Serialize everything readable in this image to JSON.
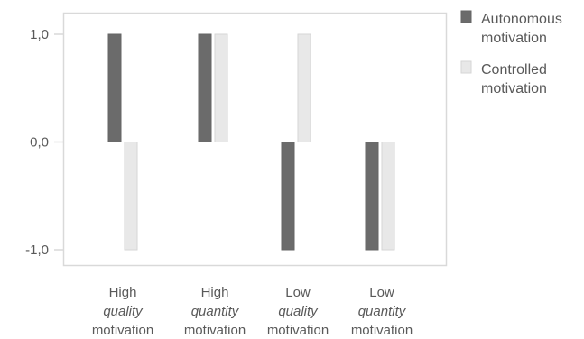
{
  "chart_data": {
    "type": "bar",
    "categories": [
      [
        "High",
        "quality",
        "motivation"
      ],
      [
        "High",
        "quantity",
        "motivation"
      ],
      [
        "Low",
        "quality",
        "motivation"
      ],
      [
        "Low",
        "quantity",
        "motivation"
      ]
    ],
    "series": [
      {
        "name": "Autonomous motivation",
        "name_lines": [
          "Autonomous",
          "motivation"
        ],
        "values": [
          1,
          1,
          -1,
          -1
        ],
        "color": "#6b6b6b"
      },
      {
        "name": "Controlled motivation",
        "name_lines": [
          "Controlled",
          "motivation"
        ],
        "values": [
          -1,
          1,
          1,
          -1
        ],
        "color": "#e8e8e8"
      }
    ],
    "y_ticks": [
      "1,0",
      "0,0",
      "-1,0"
    ],
    "y_tick_values": [
      1,
      0,
      -1
    ],
    "ylim": [
      -1.15,
      1.2
    ],
    "grid": false,
    "legend": "right",
    "title": "",
    "xlabel": "",
    "ylabel": ""
  }
}
